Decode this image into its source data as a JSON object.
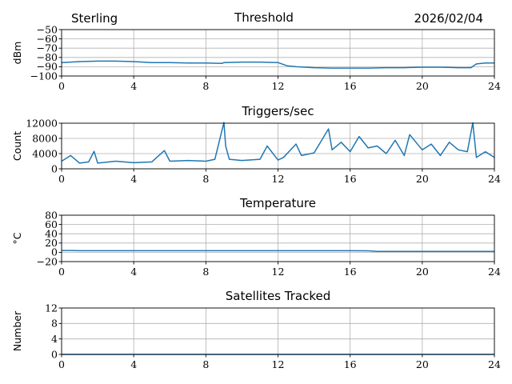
{
  "header": {
    "station": "Sterling",
    "date": "2026/02/04"
  },
  "colors": {
    "series": "#1f77b4",
    "grid": "#b0b0b0"
  },
  "chart_data": [
    {
      "type": "line",
      "title": "Threshold",
      "ylabel": "dBm",
      "xlim": [
        0,
        24
      ],
      "ylim": [
        -100,
        -50
      ],
      "xticks": [
        "0",
        "4",
        "8",
        "12",
        "16",
        "20",
        "24"
      ],
      "yticks": [
        "−50",
        "−60",
        "−70",
        "−80",
        "−90",
        "−100"
      ],
      "ytick_values": [
        -50,
        -60,
        -70,
        -80,
        -90,
        -100
      ],
      "x": [
        0,
        1,
        2,
        3,
        4,
        5,
        6,
        7,
        8,
        8.9,
        9,
        10,
        11,
        12,
        12.5,
        13,
        14,
        15,
        16,
        17,
        18,
        19,
        20,
        21,
        22,
        22.7,
        23,
        23.5,
        24
      ],
      "values": [
        -85.5,
        -84.5,
        -84,
        -84,
        -84.5,
        -85.5,
        -85.5,
        -86,
        -86,
        -86.5,
        -85.5,
        -85,
        -85,
        -85.5,
        -89,
        -90,
        -91,
        -91.5,
        -91.5,
        -91.5,
        -91,
        -91,
        -90.5,
        -90.5,
        -91,
        -91,
        -87,
        -86,
        -86
      ]
    },
    {
      "type": "line",
      "title": "Triggers/sec",
      "ylabel": "Count",
      "xlim": [
        0,
        24
      ],
      "ylim": [
        0,
        12000
      ],
      "xticks": [
        "0",
        "4",
        "8",
        "12",
        "16",
        "20",
        "24"
      ],
      "yticks": [
        "12000",
        "8000",
        "4000",
        "0"
      ],
      "ytick_values": [
        12000,
        8000,
        4000,
        0
      ],
      "x": [
        0,
        0.5,
        1,
        1.5,
        1.8,
        2,
        3,
        4,
        5,
        5.7,
        6,
        7,
        8,
        8.5,
        9,
        9.1,
        9.3,
        10,
        11,
        11.4,
        12,
        12.3,
        13,
        13.3,
        14,
        14.8,
        15,
        15.5,
        16,
        16.5,
        17,
        17.5,
        18,
        18.5,
        19,
        19.3,
        20,
        20.5,
        21,
        21.5,
        22,
        22.5,
        22.8,
        23,
        23.5,
        24
      ],
      "values": [
        2000,
        3500,
        1500,
        1800,
        4600,
        1500,
        2000,
        1600,
        1800,
        4800,
        2000,
        2200,
        2000,
        2500,
        12200,
        6000,
        2500,
        2200,
        2500,
        6000,
        2300,
        3000,
        6500,
        3500,
        4200,
        10500,
        5000,
        7000,
        4500,
        8500,
        5500,
        6000,
        4000,
        7500,
        3500,
        9000,
        5000,
        6500,
        3500,
        7000,
        5000,
        4500,
        12100,
        3000,
        4500,
        3000
      ]
    },
    {
      "type": "line",
      "title": "Temperature",
      "ylabel": "°C",
      "xlim": [
        0,
        24
      ],
      "ylim": [
        -20,
        80
      ],
      "xticks": [
        "0",
        "4",
        "8",
        "12",
        "16",
        "20",
        "24"
      ],
      "yticks": [
        "80",
        "60",
        "40",
        "20",
        "0",
        "−20"
      ],
      "ytick_values": [
        80,
        60,
        40,
        20,
        0,
        -20
      ],
      "x": [
        0,
        0.5,
        1,
        4,
        8,
        12,
        16,
        17,
        17.5,
        20,
        24
      ],
      "values": [
        4,
        4,
        3.5,
        3.5,
        3.5,
        3.5,
        3.5,
        3.2,
        2,
        2,
        2
      ]
    },
    {
      "type": "line",
      "title": "Satellites Tracked",
      "ylabel": "Number",
      "xlim": [
        0,
        24
      ],
      "ylim": [
        0,
        12
      ],
      "xticks": [
        "0",
        "4",
        "8",
        "12",
        "16",
        "20",
        "24"
      ],
      "yticks": [
        "12",
        "8",
        "4",
        "0"
      ],
      "ytick_values": [
        12,
        8,
        4,
        0
      ],
      "x": [
        0,
        24
      ],
      "values": [
        0,
        0
      ]
    }
  ]
}
